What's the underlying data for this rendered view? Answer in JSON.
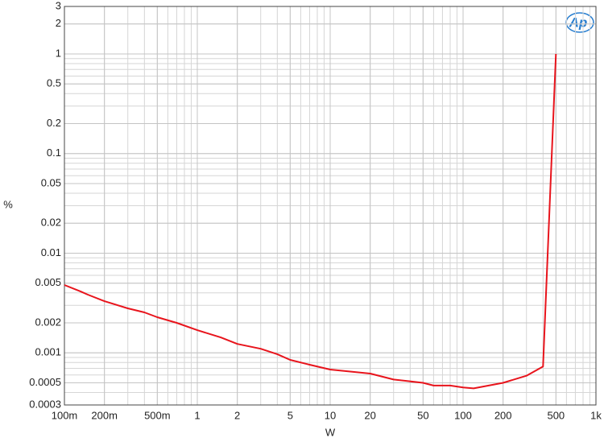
{
  "chart_data": {
    "type": "line",
    "logo": "Ap",
    "xlabel": "W",
    "ylabel": "%",
    "x": [
      0.1,
      0.132,
      0.15,
      0.2,
      0.3,
      0.4,
      0.5,
      0.7,
      1,
      1.5,
      2,
      3,
      4,
      5,
      7,
      10,
      20,
      30,
      50,
      60,
      80,
      100,
      120,
      200,
      300,
      400,
      500
    ],
    "series": [
      {
        "color": "#e8141c",
        "values": [
          0.0048,
          0.00414,
          0.00384,
          0.0033,
          0.0028,
          0.00255,
          0.00228,
          0.002,
          0.00169,
          0.00143,
          0.00123,
          0.0011,
          0.00097,
          0.00085,
          0.00076,
          0.00068,
          0.00062,
          0.00054,
          0.0005,
          0.00047,
          0.00047,
          0.00045,
          0.00044,
          0.0005,
          0.00059,
          0.00073,
          1.0
        ]
      }
    ],
    "xscale": "log",
    "yscale": "log",
    "xlim": [
      0.1,
      1000
    ],
    "ylim": [
      0.0003,
      3
    ],
    "xticks": [
      {
        "value": 0.1,
        "label": "100m"
      },
      {
        "value": 0.2,
        "label": "200m"
      },
      {
        "value": 0.5,
        "label": "500m"
      },
      1,
      2,
      5,
      10,
      20,
      50,
      100,
      200,
      500,
      {
        "value": 1000,
        "label": "1k"
      }
    ],
    "yticks": [
      0.0003,
      0.0005,
      0.001,
      0.002,
      0.005,
      0.01,
      0.02,
      0.05,
      0.1,
      0.2,
      0.5,
      1,
      2,
      3
    ],
    "grid": true
  }
}
